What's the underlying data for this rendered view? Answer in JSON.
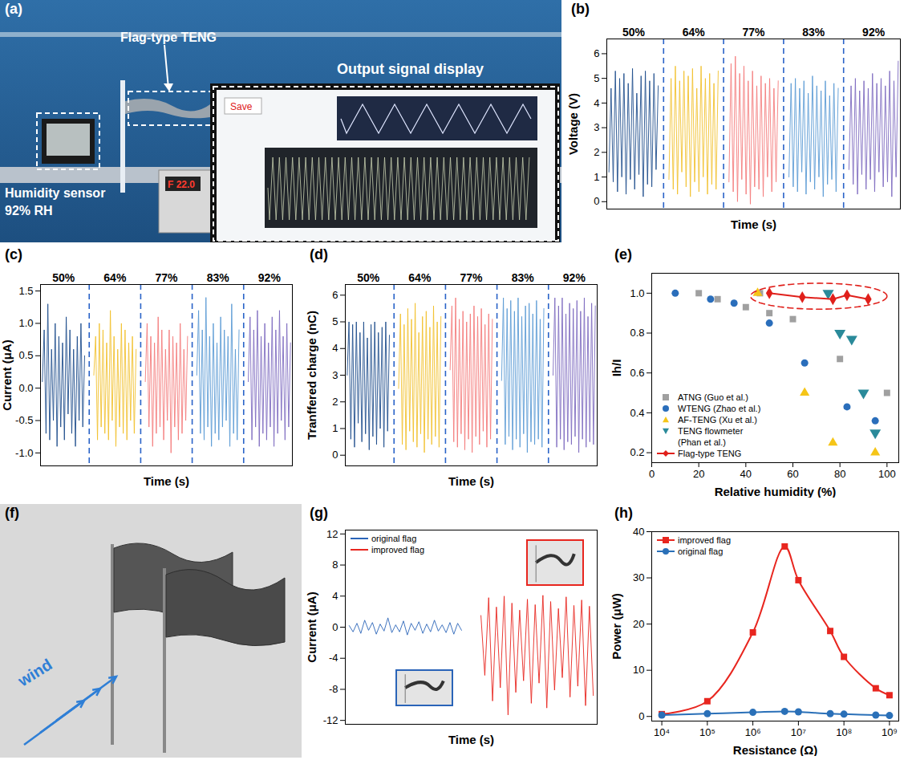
{
  "chart_data": [
    {
      "panel": "(a)",
      "type": "photo",
      "annotations": [
        "Flag-type TENG",
        "Output signal display",
        "Humidity sensor",
        "92% RH",
        "Save",
        "F 22.0"
      ]
    },
    {
      "panel": "(b)",
      "type": "line",
      "xlabel": "Time (s)",
      "ylabel": "Voltage (V)",
      "tick_labels": "y",
      "ylim": [
        -0.3,
        6.6
      ],
      "yticks": [
        0,
        1,
        2,
        3,
        4,
        5,
        6
      ],
      "series": [
        {
          "name": "50%",
          "color": "#1f4e8c",
          "values": [
            1.2,
            4.6,
            0.8,
            5.3,
            0.4,
            5.0,
            1.0,
            5.2,
            0.3,
            4.8,
            0.9,
            5.4,
            0.5,
            4.4,
            1.1,
            5.1,
            0.2,
            5.3,
            0.7,
            4.9,
            0.6,
            5.2,
            1.3,
            4.7
          ]
        },
        {
          "name": "64%",
          "color": "#f2c12e",
          "values": [
            0.9,
            5.0,
            0.5,
            5.5,
            0.3,
            4.9,
            1.2,
            5.3,
            0.6,
            5.1,
            0.2,
            5.4,
            0.8,
            4.6,
            0.4,
            5.5,
            1.0,
            5.0,
            0.3,
            5.2,
            0.7,
            4.8,
            0.5,
            5.3
          ]
        },
        {
          "name": "77%",
          "color": "#f47c7c",
          "values": [
            0.8,
            5.6,
            0.4,
            5.9,
            0.0,
            5.2,
            0.9,
            5.5,
            0.3,
            4.9,
            -0.1,
            5.3,
            0.6,
            4.7,
            0.5,
            5.1,
            0.2,
            4.8,
            1.0,
            5.0,
            0.4,
            4.6,
            0.8,
            4.9
          ]
        },
        {
          "name": "83%",
          "color": "#5b9bd5",
          "values": [
            1.0,
            4.8,
            0.6,
            5.0,
            0.4,
            4.6,
            1.2,
            4.9,
            0.3,
            4.4,
            0.8,
            5.1,
            0.5,
            4.7,
            1.0,
            4.5,
            0.2,
            4.9,
            0.7,
            4.3,
            0.9,
            4.8,
            0.4,
            4.6
          ]
        },
        {
          "name": "92%",
          "color": "#7e6bc0",
          "values": [
            1.3,
            4.7,
            0.7,
            5.0,
            0.3,
            4.5,
            1.1,
            4.9,
            0.5,
            4.6,
            0.9,
            5.2,
            0.4,
            4.8,
            1.2,
            5.0,
            0.6,
            4.7,
            0.8,
            5.3,
            0.2,
            4.9,
            1.0,
            5.7
          ]
        }
      ]
    },
    {
      "panel": "(c)",
      "type": "line",
      "xlabel": "Time (s)",
      "ylabel": "Current (μA)",
      "tick_labels": "y",
      "ylim": [
        -1.2,
        1.6
      ],
      "yticks": [
        {
          "value": -1,
          "label": "-1.0"
        },
        -0.5,
        {
          "value": 0,
          "label": "0.0"
        },
        0.5,
        {
          "value": 1,
          "label": "1.0"
        },
        1.5
      ],
      "series": [
        {
          "name": "50%",
          "color": "#1f4e8c",
          "values": [
            0.1,
            0.9,
            -0.7,
            1.3,
            -0.8,
            0.6,
            -0.5,
            1.0,
            -0.9,
            0.8,
            -0.6,
            0.7,
            -0.8,
            1.1,
            -0.4,
            0.9,
            -0.7,
            0.6,
            -0.9,
            0.8,
            -0.5,
            1.0,
            -0.6,
            0.5
          ]
        },
        {
          "name": "64%",
          "color": "#f2c12e",
          "values": [
            0.2,
            0.8,
            -0.8,
            1.0,
            -0.6,
            0.9,
            -0.7,
            0.7,
            -0.8,
            1.2,
            -0.5,
            0.8,
            -0.9,
            0.6,
            -0.6,
            1.0,
            -0.7,
            0.9,
            -0.8,
            0.7,
            -0.5,
            0.8,
            -0.7,
            0.6
          ]
        },
        {
          "name": "77%",
          "color": "#f47c7c",
          "values": [
            0.1,
            1.0,
            -0.6,
            0.8,
            -0.9,
            0.7,
            -0.7,
            1.1,
            -0.6,
            0.9,
            -0.8,
            0.6,
            -0.5,
            0.9,
            -1.0,
            0.8,
            -0.6,
            0.7,
            -0.8,
            1.0,
            -0.7,
            0.6,
            -0.5,
            0.8
          ]
        },
        {
          "name": "83%",
          "color": "#5b9bd5",
          "values": [
            0.2,
            1.2,
            -0.7,
            0.9,
            -0.8,
            1.4,
            -0.6,
            0.8,
            -0.9,
            1.0,
            -0.7,
            0.7,
            -0.8,
            1.1,
            -0.6,
            0.9,
            -0.5,
            0.8,
            -0.9,
            1.3,
            -0.7,
            0.6,
            -0.8,
            0.9
          ]
        },
        {
          "name": "92%",
          "color": "#7e6bc0",
          "values": [
            0.1,
            1.1,
            -0.8,
            0.9,
            -0.6,
            1.2,
            -0.9,
            0.8,
            -0.7,
            1.0,
            -0.8,
            0.7,
            -0.6,
            1.1,
            -0.9,
            0.9,
            -0.7,
            1.2,
            -0.5,
            0.8,
            -0.8,
            1.0,
            -0.6,
            0.7
          ]
        }
      ]
    },
    {
      "panel": "(d)",
      "type": "line",
      "xlabel": "Time (s)",
      "ylabel": "Tranffered charge (nC)",
      "tick_labels": "y",
      "ylim": [
        -0.4,
        6.4
      ],
      "yticks": [
        0,
        1,
        2,
        3,
        4,
        5,
        6
      ],
      "series": [
        {
          "name": "50%",
          "color": "#1f4e8c",
          "values": [
            3.0,
            5.0,
            0.6,
            4.9,
            0.3,
            5.0,
            1.2,
            4.6,
            0.5,
            5.0,
            0.8,
            4.4,
            0.2,
            4.9,
            0.7,
            5.0,
            0.4,
            4.6,
            1.0,
            4.8,
            0.3,
            5.0,
            0.9,
            4.5
          ]
        },
        {
          "name": "64%",
          "color": "#f2c12e",
          "values": [
            2.5,
            5.3,
            0.4,
            4.9,
            0.2,
            5.5,
            0.9,
            5.1,
            0.5,
            5.7,
            0.3,
            4.6,
            0.8,
            5.2,
            0.1,
            5.4,
            0.6,
            4.8,
            0.4,
            5.6,
            0.7,
            5.0,
            0.3,
            5.2
          ]
        },
        {
          "name": "77%",
          "color": "#f47c7c",
          "values": [
            3.2,
            5.6,
            0.5,
            5.9,
            0.3,
            5.1,
            0.8,
            5.4,
            0.2,
            5.0,
            0.6,
            5.3,
            0.1,
            5.6,
            0.7,
            5.2,
            0.4,
            5.5,
            0.9,
            4.9,
            0.3,
            5.3,
            0.6,
            5.1
          ]
        },
        {
          "name": "83%",
          "color": "#5b9bd5",
          "values": [
            2.8,
            5.9,
            0.4,
            5.5,
            0.7,
            5.8,
            0.2,
            5.4,
            0.6,
            5.9,
            0.3,
            5.2,
            0.8,
            5.6,
            0.1,
            5.7,
            0.5,
            5.3,
            0.4,
            5.8,
            0.6,
            5.1,
            0.3,
            5.5
          ]
        },
        {
          "name": "92%",
          "color": "#7e6bc0",
          "values": [
            3.0,
            5.9,
            0.3,
            5.6,
            0.6,
            5.9,
            0.2,
            5.3,
            0.5,
            5.7,
            0.4,
            5.5,
            0.7,
            5.8,
            0.1,
            5.4,
            0.6,
            5.9,
            0.3,
            5.2,
            0.5,
            5.7,
            0.4,
            5.6
          ]
        }
      ]
    },
    {
      "panel": "(e)",
      "type": "scatter",
      "xlabel": "Relative humidity (%)",
      "ylabel": "Ih/I",
      "xlim": [
        0,
        105
      ],
      "xticks": [
        0,
        20,
        40,
        60,
        80,
        100
      ],
      "ylim": [
        0.15,
        1.1
      ],
      "yticks": [
        0.2,
        0.4,
        0.6,
        0.8,
        {
          "value": 1,
          "label": "1.0"
        }
      ],
      "legend": "bottom-left",
      "series": [
        {
          "name": "ATNG (Guo et al.)",
          "color": "#a0a0a0",
          "marker": "square",
          "x": [
            20,
            28,
            40,
            46,
            50,
            60,
            80,
            100
          ],
          "values": [
            1.0,
            0.97,
            0.93,
            1.0,
            0.9,
            0.87,
            0.67,
            0.5
          ]
        },
        {
          "name": "WTENG (Zhao et al.)",
          "color": "#2a6ebb",
          "marker": "circle",
          "x": [
            10,
            25,
            35,
            50,
            65,
            83,
            95
          ],
          "values": [
            1.0,
            0.97,
            0.95,
            0.85,
            0.65,
            0.43,
            0.36
          ]
        },
        {
          "name": "AF-TENG (Xu et al.)",
          "color": "#f5c518",
          "marker": "triangle",
          "x": [
            45,
            65,
            77,
            95
          ],
          "values": [
            1.0,
            0.5,
            0.25,
            0.2
          ]
        },
        {
          "name": "TENG flowmeter (Phan et al.)",
          "color": "#2a8a9a",
          "marker": "triangle-down",
          "x": [
            75,
            80,
            85,
            90,
            95
          ],
          "values": [
            1.0,
            0.8,
            0.77,
            0.5,
            0.3
          ]
        },
        {
          "name": "Flag-type TENG",
          "color": "#e0201b",
          "marker": "diamond",
          "line_style": "solid",
          "x": [
            50,
            64,
            77,
            83,
            92
          ],
          "values": [
            1.0,
            0.98,
            0.97,
            0.99,
            0.97
          ]
        }
      ]
    },
    {
      "panel": "(f)",
      "type": "illustration",
      "annotations": [
        "wind"
      ]
    },
    {
      "panel": "(g)",
      "type": "line",
      "xlabel": "Time (s)",
      "ylabel": "Current (μA)",
      "tick_labels": "y",
      "ylim": [
        -12.5,
        12.5
      ],
      "yticks": [
        -12,
        -8,
        -4,
        0,
        4,
        8,
        12
      ],
      "legend": "top-left",
      "series": [
        {
          "name": "original flag",
          "color": "#2a64b8",
          "values": [
            0.2,
            -0.6,
            0.5,
            -0.8,
            0.9,
            -0.4,
            0.6,
            -0.9,
            0.4,
            -0.5,
            1.2,
            -0.7,
            0.3,
            -0.6,
            0.8,
            -1.0,
            0.5,
            -0.4,
            0.7,
            -0.8,
            0.4,
            -0.6,
            0.9,
            -0.5,
            0.3,
            -0.7,
            0.6,
            -0.9,
            0.5,
            -0.4
          ]
        },
        {
          "name": "improved flag",
          "color": "#e8261f",
          "values": [
            1.5,
            -6.2,
            3.8,
            -9.5,
            2.6,
            -7.8,
            4.0,
            -11.3,
            3.1,
            -8.4,
            2.2,
            -6.9,
            3.6,
            -9.8,
            2.9,
            -7.2,
            4.1,
            -10.4,
            3.3,
            -8.1,
            2.4,
            -6.5,
            3.9,
            -9.0,
            2.8,
            -7.6,
            3.5,
            -10.1,
            2.7,
            -8.8
          ]
        }
      ]
    },
    {
      "panel": "(h)",
      "type": "line",
      "xlabel": "Resistance (Ω)",
      "ylabel": "Power (μW)",
      "log": "x",
      "x": [
        10000,
        100000,
        1000000,
        5000000,
        10000000,
        50000000,
        100000000,
        500000000,
        1000000000
      ],
      "xlim": [
        6000,
        1600000000
      ],
      "xticks": [
        {
          "value": 10000,
          "label": "10⁴"
        },
        {
          "value": 100000,
          "label": "10⁵"
        },
        {
          "value": 1000000,
          "label": "10⁶"
        },
        {
          "value": 10000000,
          "label": "10⁷"
        },
        {
          "value": 100000000,
          "label": "10⁸"
        },
        {
          "value": 1000000000,
          "label": "10⁹"
        }
      ],
      "ylim": [
        -1,
        40
      ],
      "yticks": [
        0,
        10,
        20,
        30,
        40
      ],
      "legend": "top-left",
      "series": [
        {
          "name": "improved flag",
          "color": "#e8261f",
          "marker": "square",
          "line_style": "solid",
          "values": [
            0.5,
            3.3,
            18.2,
            36.8,
            29.5,
            18.5,
            12.9,
            6.1,
            4.6
          ]
        },
        {
          "name": "original flag",
          "color": "#2a70b8",
          "marker": "circle",
          "line_style": "solid",
          "values": [
            0.3,
            0.6,
            0.9,
            1.1,
            1.0,
            0.6,
            0.5,
            0.3,
            0.2
          ]
        }
      ]
    }
  ]
}
